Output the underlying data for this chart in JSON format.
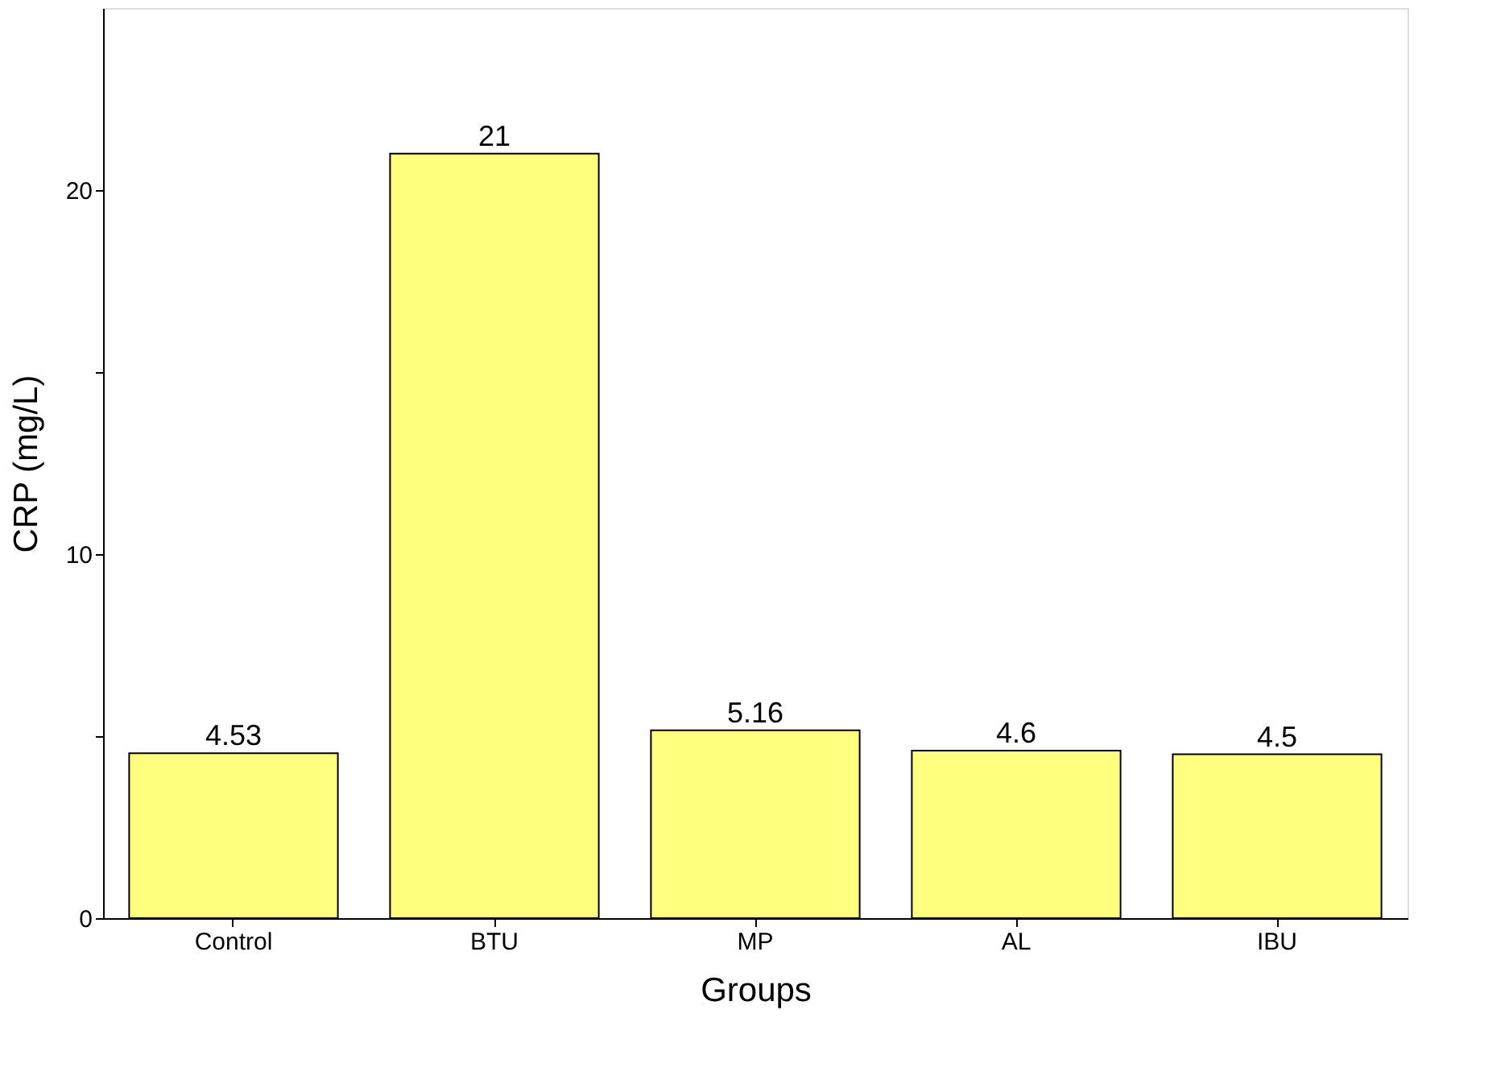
{
  "chart_data": {
    "type": "bar",
    "xlabel": "Groups",
    "ylabel": "CRP (mg/L)",
    "categories": [
      "Control",
      "BTU",
      "MP",
      "AL",
      "IBU"
    ],
    "values": [
      4.53,
      21,
      5.16,
      4.6,
      4.5
    ],
    "color": "#ffff80",
    "ylim": [
      0,
      25
    ],
    "yticks": [
      0,
      {
        "value": 5,
        "label": null
      },
      10,
      {
        "value": 15,
        "label": null
      },
      20
    ],
    "data_labels": true,
    "grid": false
  }
}
